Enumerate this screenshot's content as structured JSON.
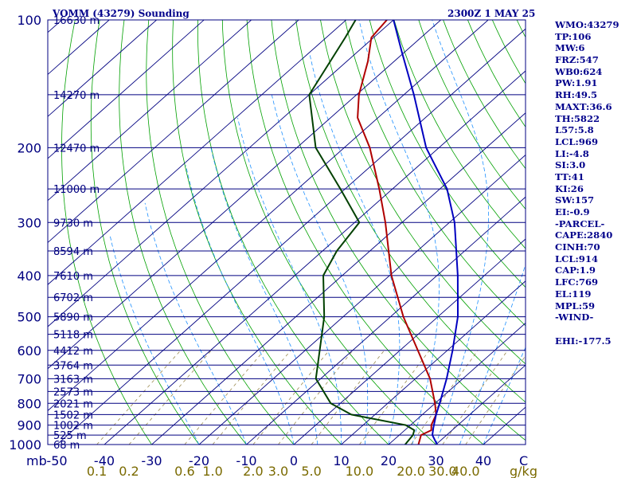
{
  "header": {
    "station": "VOMM (43279) Sounding",
    "time": "2300Z  1 MAY 25"
  },
  "indices": [
    "WMO:43279",
    "TP:106",
    "MW:6",
    "FRZ:547",
    "WB0:624",
    "PW:1.91",
    "RH:49.5",
    "MAXT:36.6",
    "TH:5822",
    "L57:5.8",
    "LCL:969",
    "LI:-4.8",
    "SI:3.0",
    "TT:41",
    "KI:26",
    "SW:157",
    "EI:-0.9",
    "-PARCEL-",
    "CAPE:2840",
    "CINH:70",
    "LCL:914",
    "CAP:1.9",
    "LFC:769",
    "EL:119",
    "MPL:59",
    "-WIND-",
    "",
    "EHI:-177.5"
  ],
  "chart_data": {
    "type": "line",
    "subtype": "skew-T log-P sounding",
    "y_axis": {
      "unit_label": "mb",
      "scale": "log",
      "range": [
        1000,
        100
      ],
      "tick_labels": [
        "100",
        "200",
        "300",
        "400",
        "500",
        "600",
        "700",
        "800",
        "900",
        "1000"
      ]
    },
    "pressure_levels": [
      {
        "p": 100,
        "height": "16630 m"
      },
      {
        "p": 150,
        "height": "14270 m"
      },
      {
        "p": 200,
        "height": "12470 m"
      },
      {
        "p": 250,
        "height": "11000 m"
      },
      {
        "p": 300,
        "height": "9730 m"
      },
      {
        "p": 350,
        "height": "8594 m"
      },
      {
        "p": 400,
        "height": "7610 m"
      },
      {
        "p": 450,
        "height": "6702 m"
      },
      {
        "p": 500,
        "height": "5890 m"
      },
      {
        "p": 550,
        "height": "5118 m"
      },
      {
        "p": 600,
        "height": "4412 m"
      },
      {
        "p": 650,
        "height": "3764 m"
      },
      {
        "p": 700,
        "height": "3163 m"
      },
      {
        "p": 750,
        "height": "2573 m"
      },
      {
        "p": 800,
        "height": "2021 m"
      },
      {
        "p": 850,
        "height": "1502 m"
      },
      {
        "p": 900,
        "height": "1002 m"
      },
      {
        "p": 950,
        "height": "525 m"
      },
      {
        "p": 1000,
        "height": "68 m"
      }
    ],
    "x_axis": {
      "temperature_ticks": [
        "-50",
        "-40",
        "-30",
        "-20",
        "-10",
        "0",
        "10",
        "20",
        "30",
        "40"
      ],
      "temperature_values": [
        -50,
        -40,
        -30,
        -20,
        -10,
        0,
        10,
        20,
        30,
        40
      ],
      "corner_label": "C",
      "mixing_ratio_ticks": [
        "0.1",
        "0.2",
        "0.6",
        "1.0",
        "2.0",
        "3.0",
        "5.0",
        "10.0",
        "20.0",
        "30.0",
        "40.0"
      ],
      "mixing_ratio_values": [
        0.1,
        0.2,
        0.6,
        1.0,
        2.0,
        3.0,
        5.0,
        10.0,
        20.0,
        30.0,
        40.0
      ],
      "mixing_ratio_unit": "g/kg"
    },
    "series": [
      {
        "role": "temperature",
        "color": "#b00000",
        "points": [
          [
            1004,
            27.0
          ],
          [
            1000,
            26.3
          ],
          [
            950,
            24.6
          ],
          [
            925,
            25.6
          ],
          [
            900,
            24.4
          ],
          [
            850,
            22.9
          ],
          [
            800,
            20.0
          ],
          [
            700,
            13.1
          ],
          [
            500,
            -7.3
          ],
          [
            400,
            -19.6
          ],
          [
            300,
            -33.5
          ],
          [
            250,
            -42.8
          ],
          [
            200,
            -54.6
          ],
          [
            170,
            -64.3
          ],
          [
            150,
            -69.5
          ],
          [
            125,
            -75.6
          ],
          [
            110,
            -80.5
          ],
          [
            100,
            -81.4
          ]
        ]
      },
      {
        "role": "dewpoint",
        "color": "#004000",
        "points": [
          [
            1004,
            23.8
          ],
          [
            1000,
            23.5
          ],
          [
            950,
            22.9
          ],
          [
            925,
            22.0
          ],
          [
            900,
            19.0
          ],
          [
            850,
            5.0
          ],
          [
            800,
            -2.0
          ],
          [
            700,
            -11.0
          ],
          [
            500,
            -24.0
          ],
          [
            400,
            -34.0
          ],
          [
            350,
            -37.0
          ],
          [
            300,
            -39.0
          ],
          [
            250,
            -51.0
          ],
          [
            200,
            -66.0
          ],
          [
            150,
            -80.0
          ],
          [
            110,
            -86.0
          ],
          [
            100,
            -88.0
          ]
        ]
      },
      {
        "role": "parcel",
        "color": "#0000c0",
        "points": [
          [
            1004,
            30.5
          ],
          [
            950,
            27.0
          ],
          [
            914,
            25.5
          ],
          [
            850,
            22.9
          ],
          [
            800,
            21.0
          ],
          [
            700,
            16.6
          ],
          [
            600,
            11.1
          ],
          [
            500,
            4.2
          ],
          [
            400,
            -5.6
          ],
          [
            300,
            -18.9
          ],
          [
            250,
            -28.5
          ],
          [
            200,
            -42.7
          ],
          [
            150,
            -57.9
          ],
          [
            119,
            -70.6
          ],
          [
            100,
            -80.0
          ]
        ]
      }
    ],
    "dry_adiabat_thetas": [
      -30,
      -20,
      -10,
      0,
      10,
      20,
      30,
      40,
      50,
      60,
      70,
      80,
      90,
      100,
      110,
      120,
      130,
      140,
      150,
      160,
      170,
      180,
      190,
      200,
      210
    ],
    "moist_adiabat_starts": [
      -20,
      -10,
      0,
      5,
      10,
      15,
      20,
      25,
      30,
      35,
      40
    ],
    "mixing_ratio_lines": [
      0.1,
      0.2,
      0.6,
      1.0,
      2.0,
      3.0,
      5.0,
      10.0,
      20.0,
      30.0,
      40.0
    ],
    "isotherm_values": [
      -150,
      -140,
      -130,
      -120,
      -110,
      -100,
      -90,
      -80,
      -70,
      -60,
      -50,
      -40,
      -30,
      -20,
      -10,
      0,
      10,
      20,
      30,
      40
    ],
    "grid": true,
    "colors": {
      "isobar": "#000080",
      "isotherm": "#000080",
      "dry_adiabat": "#00a000",
      "moist_adiabat": "#1e90ff",
      "mixing_ratio": "#9a8a50",
      "temperature": "#b00000",
      "dewpoint": "#004000",
      "parcel": "#0000c0",
      "frame": "#000080"
    }
  }
}
